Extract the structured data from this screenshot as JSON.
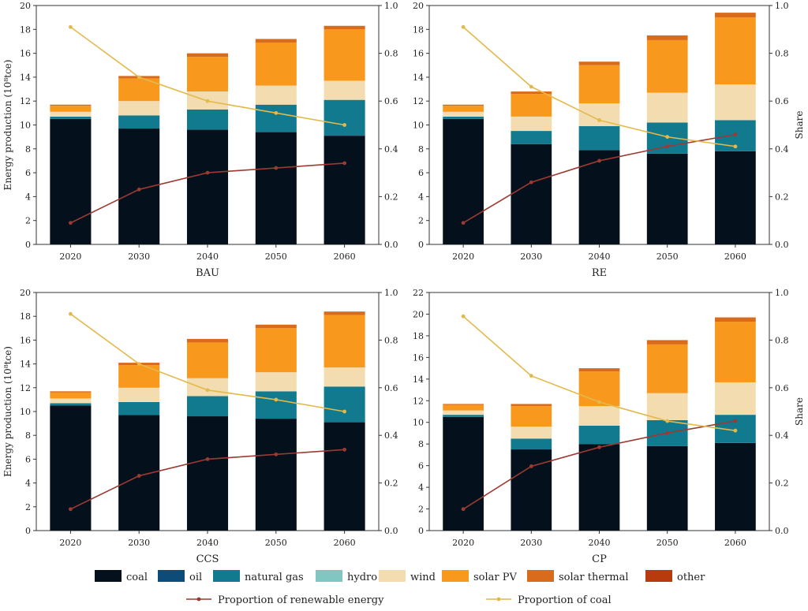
{
  "legend": {
    "items": [
      {
        "key": "coal",
        "label": "coal",
        "color": "#04111c"
      },
      {
        "key": "oil",
        "label": "oil",
        "color": "#0d4b78"
      },
      {
        "key": "natural_gas",
        "label": "natural gas",
        "color": "#117a8e"
      },
      {
        "key": "hydro",
        "label": "hydro",
        "color": "#7fc7c0"
      },
      {
        "key": "wind",
        "label": "wind",
        "color": "#f3ddb0"
      },
      {
        "key": "solar_pv",
        "label": "solar PV",
        "color": "#f8981d"
      },
      {
        "key": "solar_thermal",
        "label": "solar thermal",
        "color": "#d86c1c"
      },
      {
        "key": "other",
        "label": "other",
        "color": "#b83b0e"
      }
    ],
    "line_items": [
      {
        "key": "renewable",
        "label": "Proportion of renewable energy",
        "color": "#9c3a32"
      },
      {
        "key": "coal_share",
        "label": "Proportion of coal",
        "color": "#e3b94b"
      }
    ]
  },
  "chart_data": [
    {
      "type": "bar",
      "title": "BAU",
      "ylabel": "Energy production (10⁸tce)",
      "y2label": "",
      "categories": [
        "2020",
        "2030",
        "2040",
        "2050",
        "2060"
      ],
      "ylim": [
        0,
        20
      ],
      "y_ticks": [
        0,
        2,
        4,
        6,
        8,
        10,
        12,
        14,
        16,
        18,
        20
      ],
      "y2lim": [
        0,
        1
      ],
      "y2_ticks": [
        "0.0",
        "0.2",
        "0.4",
        "0.6",
        "0.8",
        "1.0"
      ],
      "series": [
        {
          "key": "coal",
          "values": [
            10.5,
            9.7,
            9.6,
            9.4,
            9.1
          ]
        },
        {
          "key": "oil",
          "values": [
            0,
            0,
            0,
            0,
            0
          ]
        },
        {
          "key": "natural_gas",
          "values": [
            0.2,
            1.1,
            1.7,
            2.3,
            3.0
          ]
        },
        {
          "key": "hydro",
          "values": [
            0,
            0,
            0,
            0,
            0
          ]
        },
        {
          "key": "wind",
          "values": [
            0.4,
            1.2,
            1.5,
            1.6,
            1.6
          ]
        },
        {
          "key": "solar_pv",
          "values": [
            0.5,
            1.9,
            2.9,
            3.6,
            4.3
          ]
        },
        {
          "key": "solar_thermal",
          "values": [
            0.1,
            0.2,
            0.3,
            0.3,
            0.3
          ]
        },
        {
          "key": "other",
          "values": [
            0,
            0,
            0,
            0,
            0
          ]
        }
      ],
      "lines": [
        {
          "key": "renewable",
          "values": [
            0.09,
            0.23,
            0.3,
            0.32,
            0.34
          ]
        },
        {
          "key": "coal_share",
          "values": [
            0.91,
            0.7,
            0.6,
            0.55,
            0.5
          ]
        }
      ]
    },
    {
      "type": "bar",
      "title": "RE",
      "ylabel": "",
      "y2label": "Share",
      "categories": [
        "2020",
        "2030",
        "2040",
        "2050",
        "2060"
      ],
      "ylim": [
        0,
        20
      ],
      "y_ticks": [
        0,
        2,
        4,
        6,
        8,
        10,
        12,
        14,
        16,
        18,
        20
      ],
      "y2lim": [
        0,
        1
      ],
      "y2_ticks": [
        "0.0",
        "0.2",
        "0.4",
        "0.6",
        "0.8",
        "1.0"
      ],
      "series": [
        {
          "key": "coal",
          "values": [
            10.5,
            8.4,
            7.9,
            7.6,
            7.8
          ]
        },
        {
          "key": "oil",
          "values": [
            0,
            0,
            0,
            0,
            0
          ]
        },
        {
          "key": "natural_gas",
          "values": [
            0.2,
            1.1,
            2.0,
            2.6,
            2.6
          ]
        },
        {
          "key": "hydro",
          "values": [
            0,
            0,
            0,
            0,
            0
          ]
        },
        {
          "key": "wind",
          "values": [
            0.4,
            1.2,
            1.9,
            2.5,
            3.0
          ]
        },
        {
          "key": "solar_pv",
          "values": [
            0.5,
            1.9,
            3.2,
            4.4,
            5.6
          ]
        },
        {
          "key": "solar_thermal",
          "values": [
            0.1,
            0.2,
            0.3,
            0.4,
            0.4
          ]
        },
        {
          "key": "other",
          "values": [
            0,
            0,
            0,
            0,
            0
          ]
        }
      ],
      "lines": [
        {
          "key": "renewable",
          "values": [
            0.09,
            0.26,
            0.35,
            0.41,
            0.46
          ]
        },
        {
          "key": "coal_share",
          "values": [
            0.91,
            0.66,
            0.52,
            0.45,
            0.41
          ]
        }
      ]
    },
    {
      "type": "bar",
      "title": "CCS",
      "ylabel": "Energy production (10⁸tce)",
      "y2label": "",
      "categories": [
        "2020",
        "2030",
        "2040",
        "2050",
        "2060"
      ],
      "ylim": [
        0,
        20
      ],
      "y_ticks": [
        0,
        2,
        4,
        6,
        8,
        10,
        12,
        14,
        16,
        18,
        20
      ],
      "y2lim": [
        0,
        1
      ],
      "y2_ticks": [
        "0.0",
        "0.2",
        "0.4",
        "0.6",
        "0.8",
        "1.0"
      ],
      "series": [
        {
          "key": "coal",
          "values": [
            10.5,
            9.7,
            9.6,
            9.4,
            9.1
          ]
        },
        {
          "key": "oil",
          "values": [
            0,
            0,
            0,
            0,
            0
          ]
        },
        {
          "key": "natural_gas",
          "values": [
            0.2,
            1.1,
            1.7,
            2.3,
            3.0
          ]
        },
        {
          "key": "hydro",
          "values": [
            0,
            0,
            0,
            0,
            0
          ]
        },
        {
          "key": "wind",
          "values": [
            0.4,
            1.2,
            1.5,
            1.6,
            1.6
          ]
        },
        {
          "key": "solar_pv",
          "values": [
            0.5,
            1.9,
            3.0,
            3.7,
            4.4
          ]
        },
        {
          "key": "solar_thermal",
          "values": [
            0.1,
            0.2,
            0.3,
            0.3,
            0.3
          ]
        },
        {
          "key": "other",
          "values": [
            0,
            0,
            0,
            0,
            0
          ]
        }
      ],
      "lines": [
        {
          "key": "renewable",
          "values": [
            0.09,
            0.23,
            0.3,
            0.32,
            0.34
          ]
        },
        {
          "key": "coal_share",
          "values": [
            0.91,
            0.7,
            0.59,
            0.55,
            0.5
          ]
        }
      ]
    },
    {
      "type": "bar",
      "title": "CP",
      "ylabel": "",
      "y2label": "Share",
      "categories": [
        "2020",
        "2030",
        "2040",
        "2050",
        "2060"
      ],
      "ylim": [
        0,
        22
      ],
      "y_ticks": [
        0,
        2,
        4,
        6,
        8,
        10,
        12,
        14,
        16,
        18,
        20,
        22
      ],
      "y2lim": [
        0,
        1
      ],
      "y2_ticks": [
        "0.0",
        "0.2",
        "0.4",
        "0.6",
        "0.8",
        "1.0"
      ],
      "series": [
        {
          "key": "coal",
          "values": [
            10.5,
            7.5,
            8.0,
            7.8,
            8.1
          ]
        },
        {
          "key": "oil",
          "values": [
            0,
            0,
            0,
            0,
            0
          ]
        },
        {
          "key": "natural_gas",
          "values": [
            0.2,
            1.0,
            1.7,
            2.4,
            2.6
          ]
        },
        {
          "key": "hydro",
          "values": [
            0,
            0,
            0,
            0,
            0
          ]
        },
        {
          "key": "wind",
          "values": [
            0.4,
            1.1,
            1.8,
            2.5,
            3.0
          ]
        },
        {
          "key": "solar_pv",
          "values": [
            0.5,
            1.9,
            3.2,
            4.5,
            5.6
          ]
        },
        {
          "key": "solar_thermal",
          "values": [
            0.1,
            0.2,
            0.3,
            0.4,
            0.4
          ]
        },
        {
          "key": "other",
          "values": [
            0,
            0,
            0,
            0,
            0
          ]
        }
      ],
      "lines": [
        {
          "key": "renewable",
          "values": [
            0.09,
            0.27,
            0.35,
            0.41,
            0.46
          ]
        },
        {
          "key": "coal_share",
          "values": [
            0.9,
            0.65,
            0.54,
            0.46,
            0.42
          ]
        }
      ]
    }
  ]
}
